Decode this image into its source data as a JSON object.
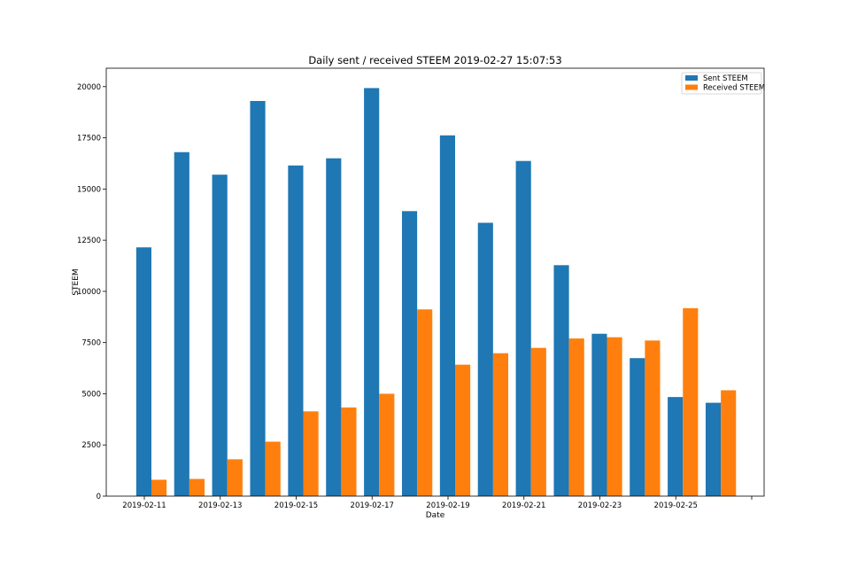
{
  "chart_data": {
    "type": "bar",
    "title": "Daily sent / received STEEM 2019-02-27 15:07:53",
    "xlabel": "Date",
    "ylabel": "STEEM",
    "ylim": [
      0,
      20900
    ],
    "yticks": [
      0,
      2500,
      5000,
      7500,
      10000,
      12500,
      15000,
      17500,
      20000
    ],
    "xticks": [
      "2019-02-11",
      "2019-02-13",
      "2019-02-15",
      "2019-02-17",
      "2019-02-19",
      "2019-02-21",
      "2019-02-23",
      "2019-02-25",
      ""
    ],
    "x": [
      "2019-02-11",
      "2019-02-12",
      "2019-02-13",
      "2019-02-14",
      "2019-02-15",
      "2019-02-16",
      "2019-02-17",
      "2019-02-18",
      "2019-02-19",
      "2019-02-20",
      "2019-02-21",
      "2019-02-22",
      "2019-02-23",
      "2019-02-24",
      "2019-02-25",
      "2019-02-26"
    ],
    "series": [
      {
        "name": "Sent STEEM",
        "color": "#1f77b4",
        "values": [
          12150,
          16800,
          15700,
          19300,
          16150,
          16500,
          19930,
          13920,
          17620,
          13350,
          16370,
          11280,
          7930,
          6740,
          4840,
          4560
        ]
      },
      {
        "name": "Received STEEM",
        "color": "#ff7f0e",
        "values": [
          800,
          840,
          1800,
          2660,
          4140,
          4330,
          5000,
          9120,
          6420,
          6980,
          7240,
          7700,
          7760,
          7600,
          9180,
          5170
        ]
      }
    ],
    "legend": "top-right",
    "grid": false
  }
}
